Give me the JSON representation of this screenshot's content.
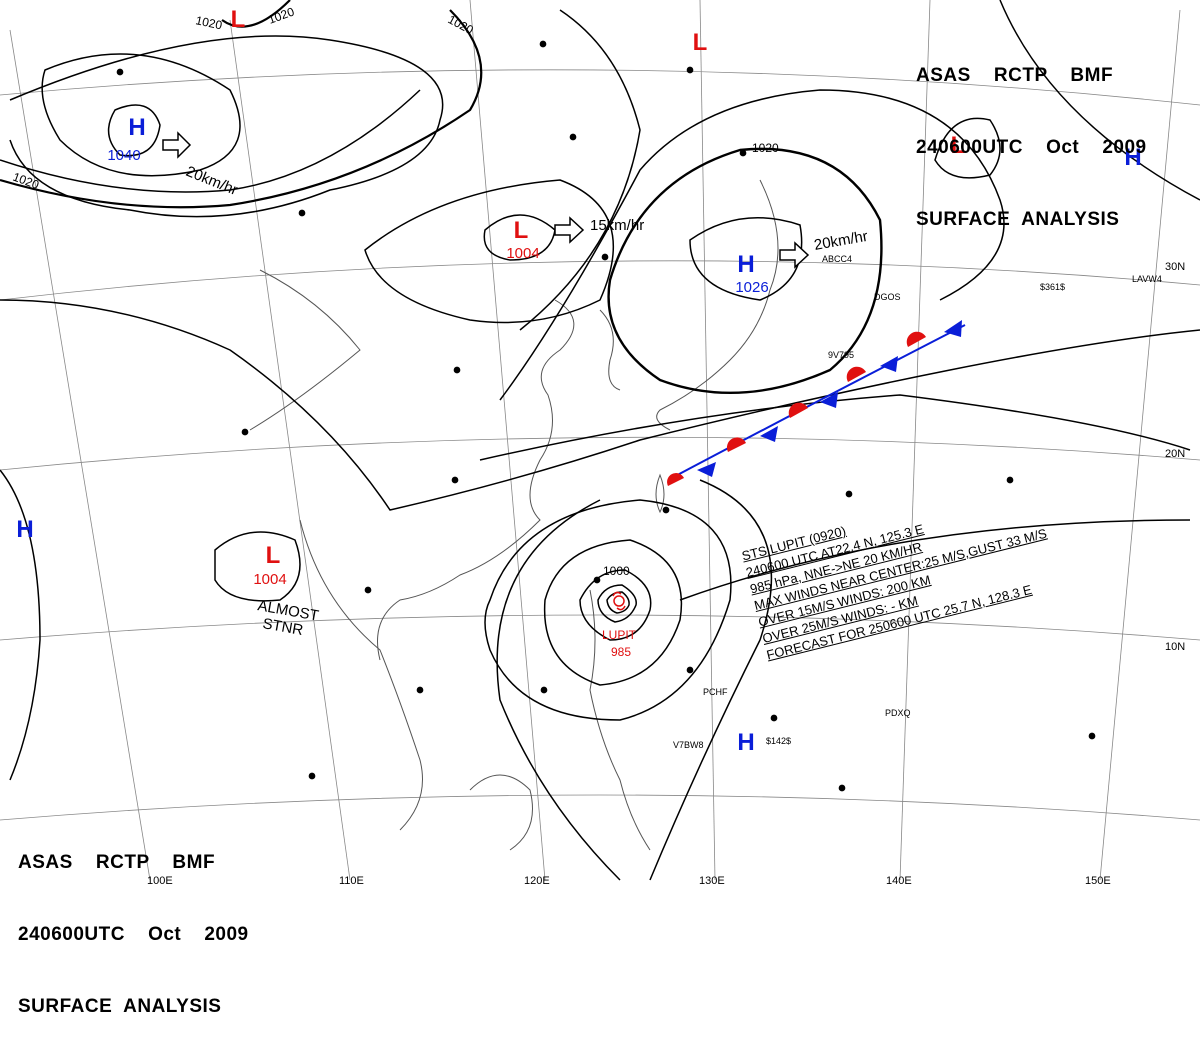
{
  "header_top_right": [
    "ASAS    RCTP    BMF",
    "240600UTC    Oct    2009",
    "SURFACE  ANALYSIS"
  ],
  "header_bottom_left": [
    "ASAS    RCTP    BMF",
    "240600UTC    Oct    2009",
    "SURFACE  ANALYSIS"
  ],
  "storm_info": [
    "STS  LUPIT  (0920)",
    "240600 UTC  AT22.4 N, 125.3 E",
    "985 hPa, NNE->NE  20 KM/HR",
    "MAX WINDS NEAR CENTER:25 M/S,GUST 33 M/S",
    "OVER 15M/S WINDS: 200 KM",
    "OVER 25M/S WINDS: - KM",
    "FORECAST FOR 250600 UTC 25.7 N, 128.3 E"
  ],
  "pressure_centers": [
    {
      "type": "H",
      "value": "1040"
    },
    {
      "type": "L",
      "value": ""
    },
    {
      "type": "L",
      "value": "1004"
    },
    {
      "type": "L",
      "value": ""
    },
    {
      "type": "H",
      "value": "1026"
    },
    {
      "type": "L",
      "value": ""
    },
    {
      "type": "H",
      "value": ""
    },
    {
      "type": "H",
      "value": ""
    },
    {
      "type": "L",
      "value": "1004"
    },
    {
      "type": "H",
      "value": ""
    }
  ],
  "typhoon": {
    "name": "LUPIT",
    "pressure": "985"
  },
  "motion_labels": [
    "20km/hr",
    "15km/hr",
    "20km/hr"
  ],
  "stationary_label": [
    "ALMOST",
    "STNR"
  ],
  "isobar_labels": [
    "1020",
    "1020",
    "1020",
    "1020",
    "1020",
    "1000"
  ],
  "longitude_labels": [
    "100E",
    "110E",
    "120E",
    "130E",
    "140E",
    "150E"
  ],
  "latitude_labels": [
    "30N",
    "20N",
    "10N"
  ],
  "colors": {
    "high": "#0a1ed8",
    "low": "#e01010",
    "front_warm": "#e01010",
    "front_cold": "#0a1ed8",
    "isobar": "#000000",
    "grid": "#888888",
    "coast": "#555555"
  },
  "station_codes": [
    "ABCC4",
    "DGOS",
    "9V795",
    "$361$",
    "LAVW4",
    "PCHF",
    "V7BW8",
    "PDXQ",
    "$142$"
  ]
}
